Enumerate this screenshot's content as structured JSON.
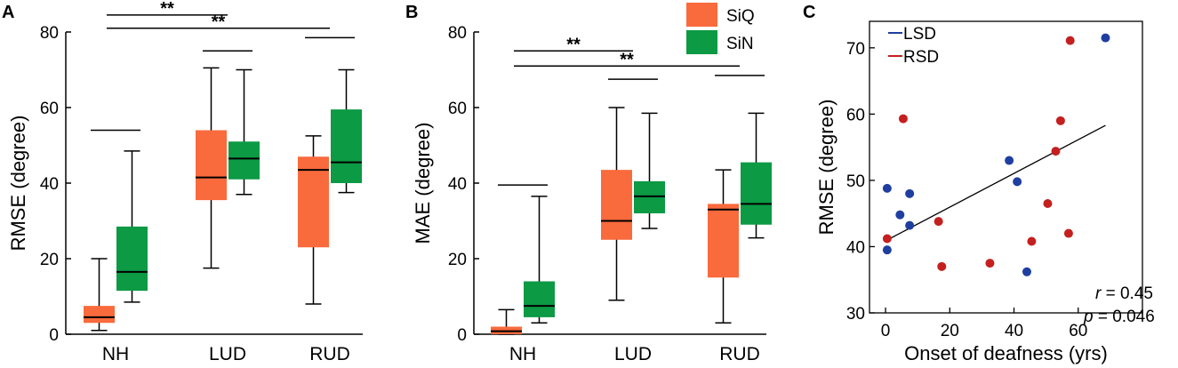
{
  "colors": {
    "siq": "#f96a3c",
    "sin": "#0c9a44",
    "lsd": "#1f3fa0",
    "rsd": "#c4201f",
    "axis": "#000000"
  },
  "chart_data": [
    {
      "id": "A",
      "type": "box",
      "panel_label": "A",
      "ylabel": "RMSE (degree)",
      "ylim": [
        0,
        80
      ],
      "yticks": [
        0,
        20,
        40,
        60,
        80
      ],
      "categories": [
        "NH",
        "LUD",
        "RUD"
      ],
      "series": [
        {
          "name": "SiQ",
          "boxes": [
            {
              "min": 1,
              "q1": 3,
              "median": 4.5,
              "q3": 7.5,
              "max": 20
            },
            {
              "min": 17.5,
              "q1": 35.5,
              "median": 41.5,
              "q3": 54,
              "max": 70.5
            },
            {
              "min": 8,
              "q1": 23,
              "median": 43.5,
              "q3": 47,
              "max": 52.5
            }
          ]
        },
        {
          "name": "SiN",
          "boxes": [
            {
              "min": 8.5,
              "q1": 11.5,
              "median": 16.5,
              "q3": 28.5,
              "max": 48.5
            },
            {
              "min": 37,
              "q1": 41,
              "median": 46.5,
              "q3": 51,
              "max": 70
            },
            {
              "min": 37.5,
              "q1": 40,
              "median": 45.5,
              "q3": 59.5,
              "max": 70
            }
          ]
        }
      ],
      "significance": [
        {
          "label": "**",
          "from": "NH",
          "to": "LUD",
          "y": 84.5
        },
        {
          "label": "**",
          "from": "NH",
          "to": "RUD",
          "y": 81
        }
      ],
      "pair_lines": [
        {
          "category": "NH",
          "y": 54
        },
        {
          "category": "LUD",
          "y": 75
        },
        {
          "category": "RUD",
          "y": 78.5
        }
      ]
    },
    {
      "id": "B",
      "type": "box",
      "panel_label": "B",
      "ylabel": "MAE (degree)",
      "ylim": [
        0,
        80
      ],
      "yticks": [
        0,
        20,
        40,
        60,
        80
      ],
      "categories": [
        "NH",
        "LUD",
        "RUD"
      ],
      "legend": [
        "SiQ",
        "SiN"
      ],
      "series": [
        {
          "name": "SiQ",
          "boxes": [
            {
              "min": 0,
              "q1": 0,
              "median": 0.8,
              "q3": 2,
              "max": 6.5
            },
            {
              "min": 9,
              "q1": 25,
              "median": 30,
              "q3": 43.5,
              "max": 60
            },
            {
              "min": 3,
              "q1": 15,
              "median": 33,
              "q3": 34.5,
              "max": 43.5
            }
          ]
        },
        {
          "name": "SiN",
          "boxes": [
            {
              "min": 3,
              "q1": 4.5,
              "median": 7.5,
              "q3": 14,
              "max": 36.5
            },
            {
              "min": 28,
              "q1": 32,
              "median": 36.5,
              "q3": 40.5,
              "max": 58.5
            },
            {
              "min": 25.5,
              "q1": 29,
              "median": 34.5,
              "q3": 45.5,
              "max": 58.5
            }
          ]
        }
      ],
      "significance": [
        {
          "label": "**",
          "from": "NH",
          "to": "LUD",
          "y": 75
        },
        {
          "label": "**",
          "from": "NH",
          "to": "RUD",
          "y": 71
        }
      ],
      "pair_lines": [
        {
          "category": "NH",
          "y": 39.5
        },
        {
          "category": "LUD",
          "y": 67.5
        },
        {
          "category": "RUD",
          "y": 68.5
        }
      ]
    },
    {
      "id": "C",
      "type": "scatter",
      "panel_label": "C",
      "xlabel": "Onset of deafness (yrs)",
      "ylabel": "RMSE (degree)",
      "xlim": [
        -5,
        80
      ],
      "ylim": [
        30,
        74
      ],
      "xticks": [
        0,
        20,
        40,
        60
      ],
      "yticks": [
        30,
        40,
        50,
        60,
        70
      ],
      "legend": [
        "LSD",
        "RSD"
      ],
      "series": [
        {
          "name": "LSD",
          "points": [
            [
              0.5,
              48.8
            ],
            [
              0.5,
              39.5
            ],
            [
              4.5,
              44.8
            ],
            [
              7.5,
              48.0
            ],
            [
              7.5,
              43.2
            ],
            [
              38.5,
              53.0
            ],
            [
              41,
              49.8
            ],
            [
              44,
              36.2
            ],
            [
              68.5,
              71.5
            ]
          ]
        },
        {
          "name": "RSD",
          "points": [
            [
              0.5,
              41.2
            ],
            [
              5.5,
              59.3
            ],
            [
              16.5,
              43.8
            ],
            [
              17.5,
              37.0
            ],
            [
              32.5,
              37.5
            ],
            [
              45.5,
              40.8
            ],
            [
              50.5,
              46.5
            ],
            [
              53,
              54.4
            ],
            [
              54.5,
              59.0
            ],
            [
              57,
              42.0
            ],
            [
              57.5,
              71.1
            ]
          ]
        }
      ],
      "fit_line": {
        "x": [
          0.5,
          68.5
        ],
        "y": [
          41.0,
          58.3
        ]
      },
      "stats": {
        "r_label": "r",
        "r_value": " = 0.45",
        "p_label": "p",
        "p_value": " = 0.046"
      }
    }
  ]
}
